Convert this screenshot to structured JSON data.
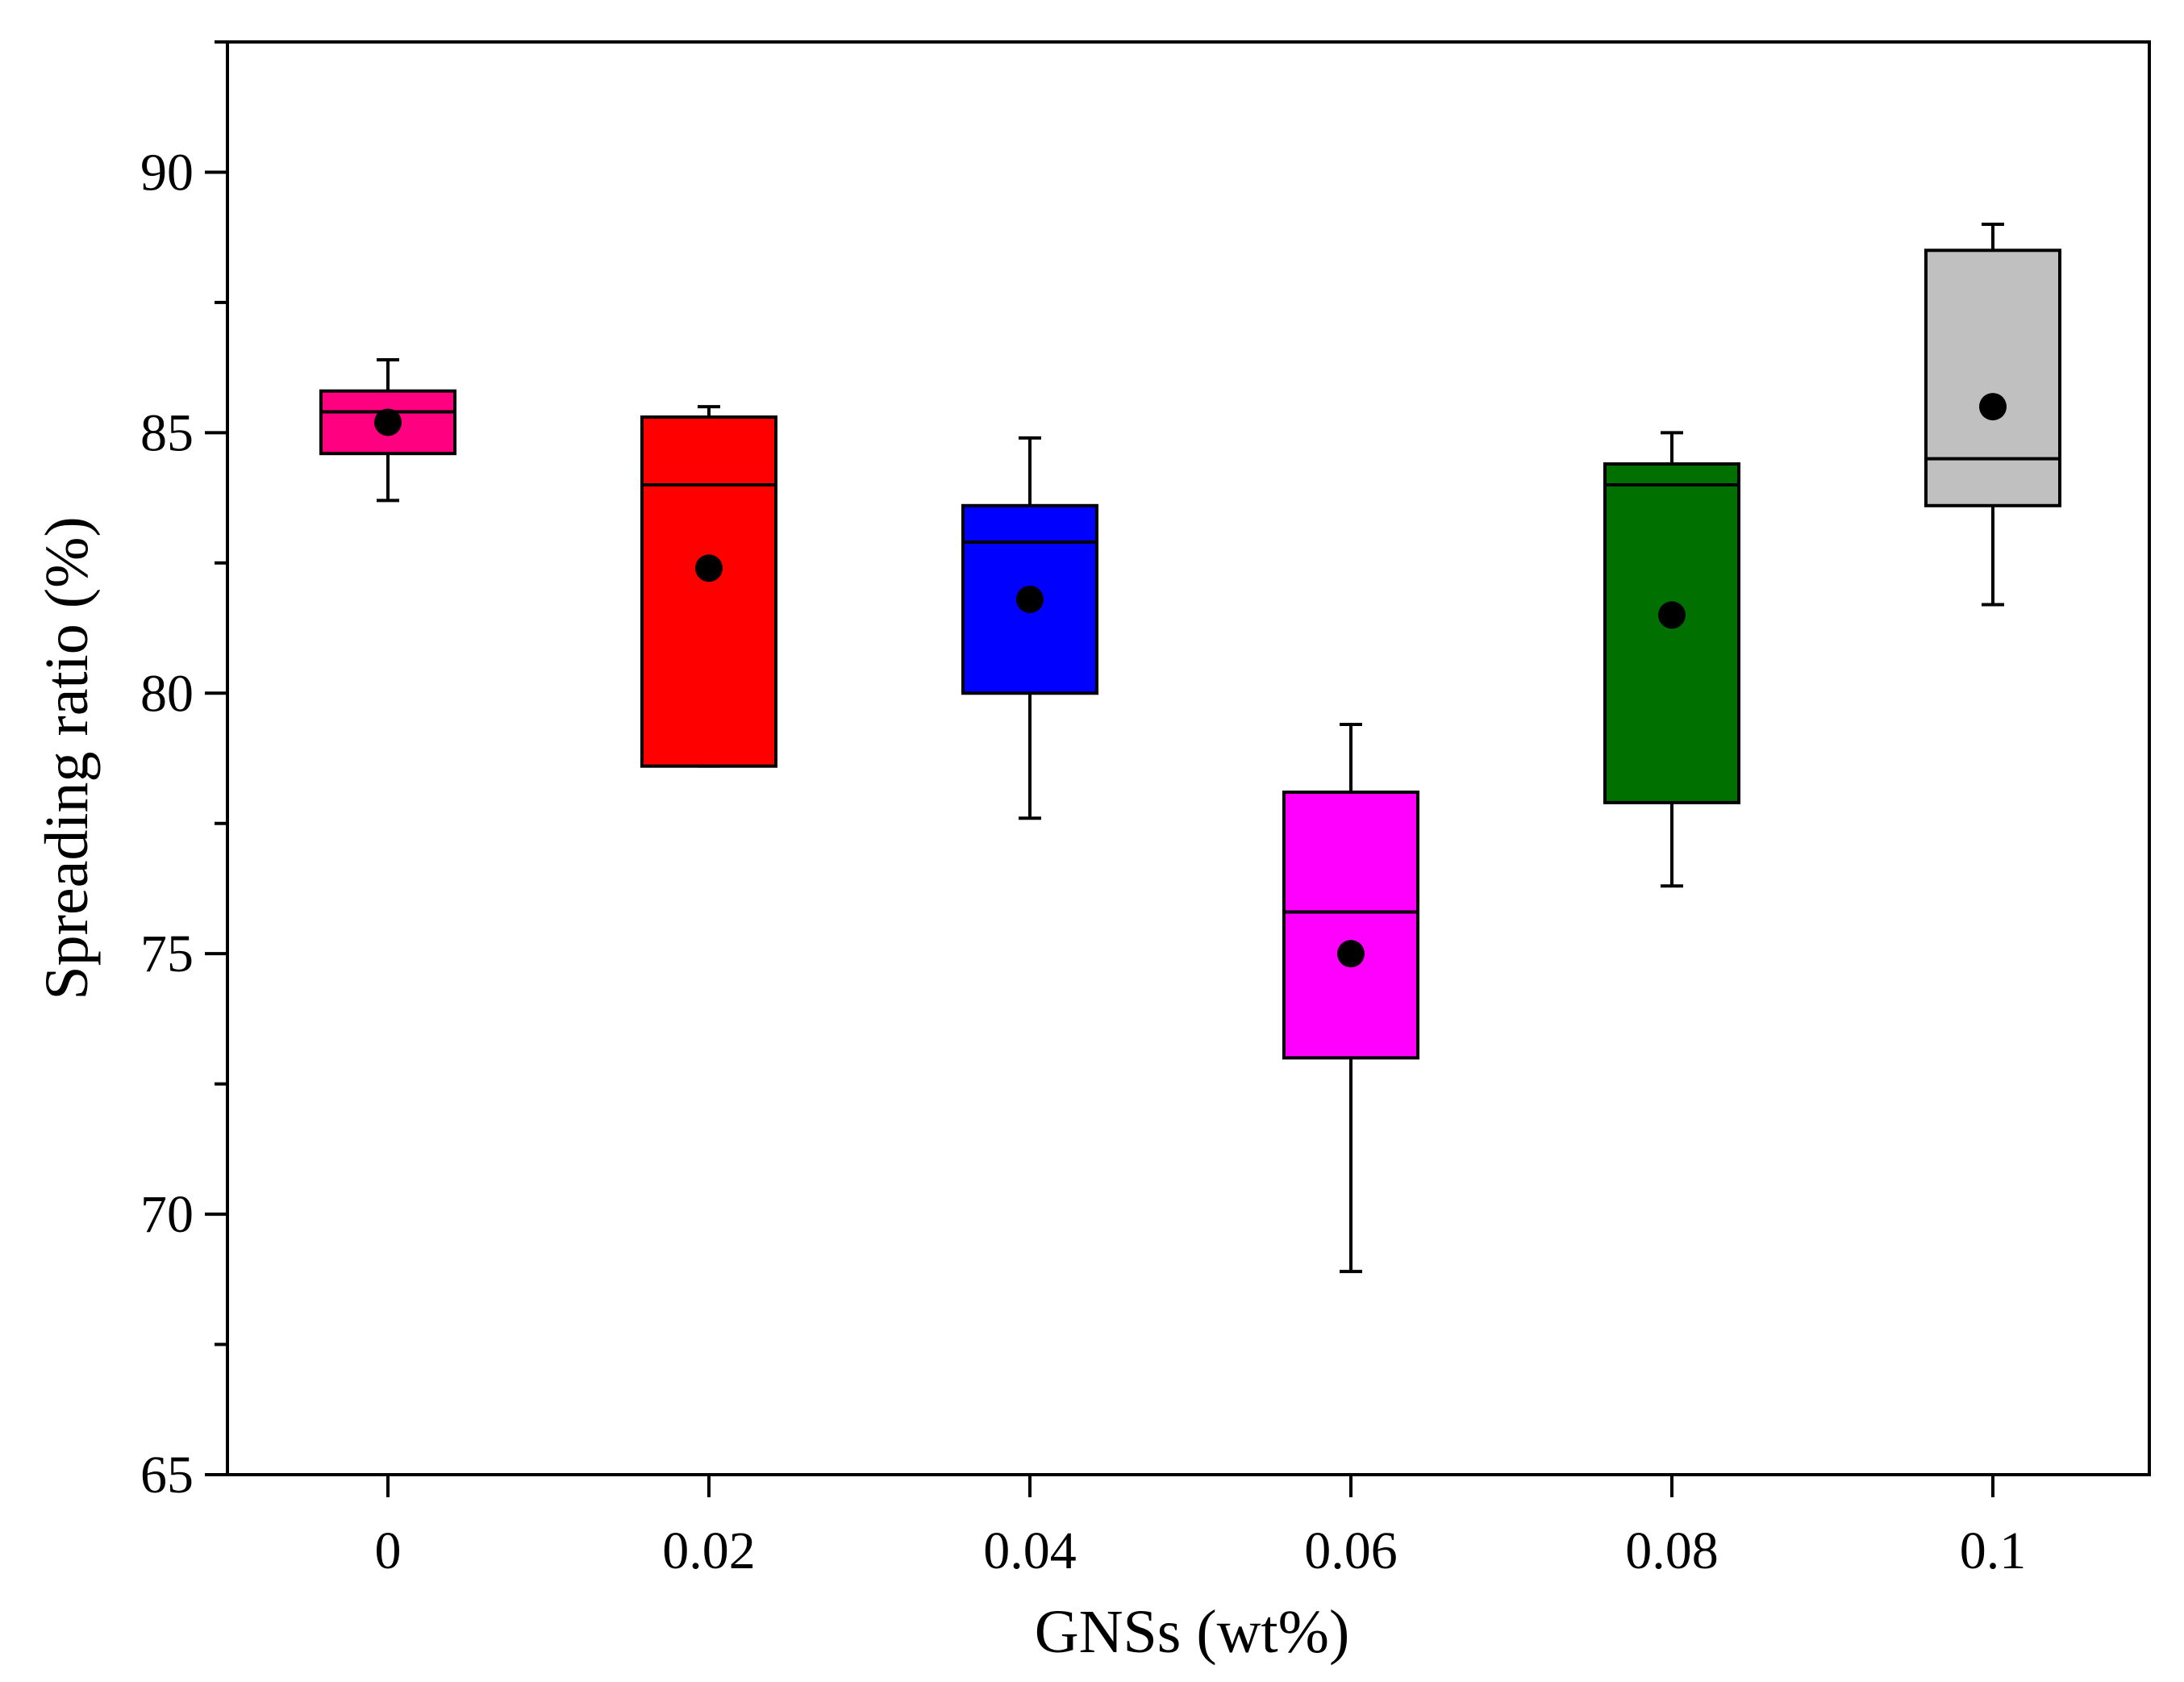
{
  "chart_data": {
    "type": "box",
    "title": "",
    "xlabel": "GNSs (wt%)",
    "ylabel": "Spreading ratio (%)",
    "categories": [
      "0",
      "0.02",
      "0.04",
      "0.06",
      "0.08",
      "0.1"
    ],
    "ylim": [
      65,
      92.5
    ],
    "yticks": [
      65,
      70,
      75,
      80,
      85,
      90
    ],
    "grid": false,
    "series": [
      {
        "category": "0",
        "color": "#ff0080",
        "whisker_low": 83.7,
        "q1": 84.6,
        "median": 85.4,
        "q3": 85.8,
        "whisker_high": 86.4,
        "mean": 85.2
      },
      {
        "category": "0.02",
        "color": "#ff0000",
        "whisker_low": 78.6,
        "q1": 78.6,
        "median": 84.0,
        "q3": 85.3,
        "whisker_high": 85.5,
        "mean": 82.4
      },
      {
        "category": "0.04",
        "color": "#0000ff",
        "whisker_low": 77.6,
        "q1": 80.0,
        "median": 82.9,
        "q3": 83.6,
        "whisker_high": 84.9,
        "mean": 81.8
      },
      {
        "category": "0.06",
        "color": "#ff00ff",
        "whisker_low": 68.9,
        "q1": 73.0,
        "median": 75.8,
        "q3": 78.1,
        "whisker_high": 79.4,
        "mean": 75.0
      },
      {
        "category": "0.08",
        "color": "#007000",
        "whisker_low": 76.3,
        "q1": 77.9,
        "median": 84.0,
        "q3": 84.4,
        "whisker_high": 85.0,
        "mean": 81.5
      },
      {
        "category": "0.1",
        "color": "#c0c0c0",
        "whisker_low": 81.7,
        "q1": 83.6,
        "median": 84.5,
        "q3": 88.5,
        "whisker_high": 89.0,
        "mean": 85.5
      }
    ]
  }
}
